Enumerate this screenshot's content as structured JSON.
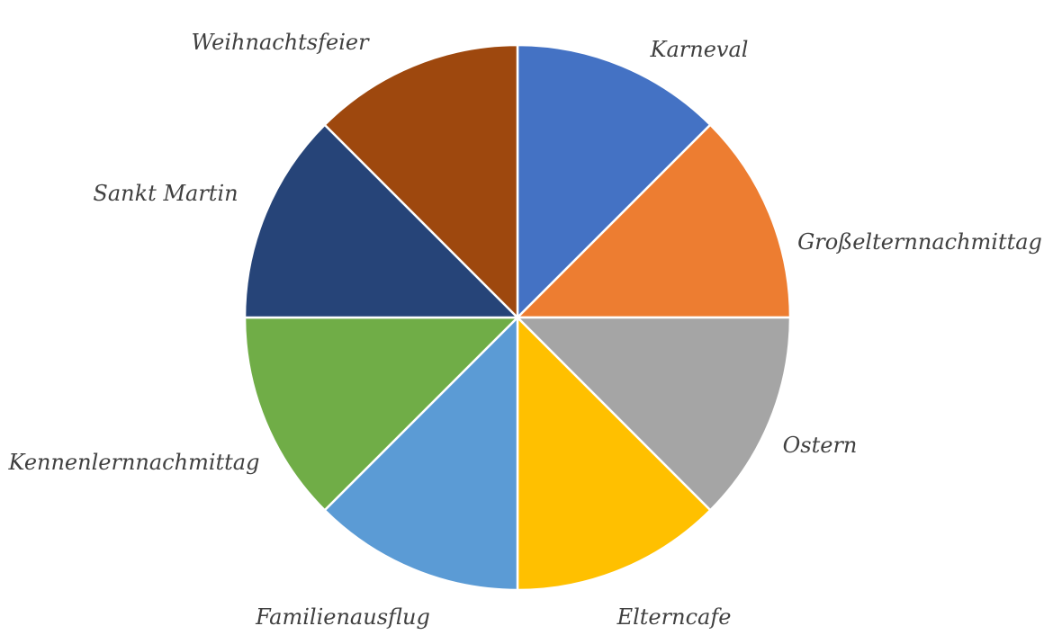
{
  "chart_data": {
    "type": "pie",
    "title": "",
    "start_angle_deg": 0,
    "direction": "clockwise",
    "slices": [
      {
        "label": "Karneval",
        "value": 1,
        "color": "#4472C4"
      },
      {
        "label": "Großelternnachmittag",
        "value": 1,
        "color": "#ED7D31"
      },
      {
        "label": "Ostern",
        "value": 1,
        "color": "#A5A5A5"
      },
      {
        "label": "Elterncafe",
        "value": 1,
        "color": "#FFC000"
      },
      {
        "label": "Familienausflug",
        "value": 1,
        "color": "#5B9BD5"
      },
      {
        "label": "Kennenlernnachmittag",
        "value": 1,
        "color": "#70AD47"
      },
      {
        "label": "Sankt Martin",
        "value": 1,
        "color": "#264478"
      },
      {
        "label": "Weihnachtsfeier",
        "value": 1,
        "color": "#9E480E"
      }
    ],
    "legend": "none",
    "data_labels": "category-name-outside"
  }
}
